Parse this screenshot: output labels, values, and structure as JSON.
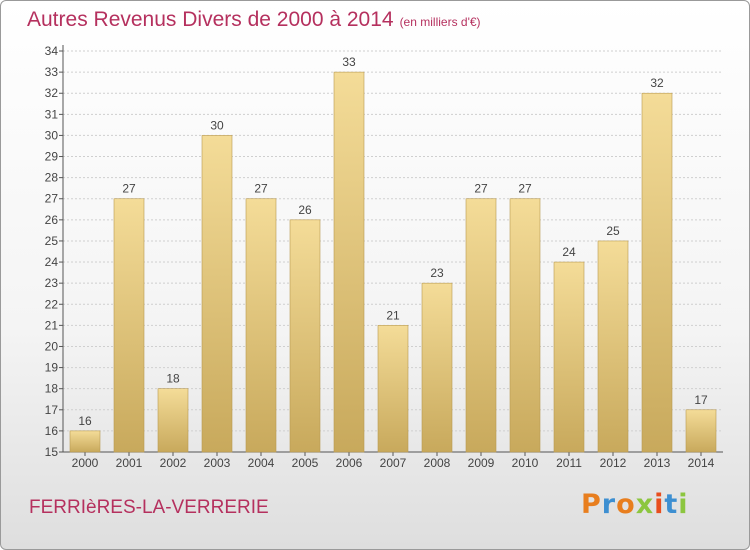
{
  "title": {
    "main": "Autres Revenus Divers de 2000 à 2014",
    "unit": "(en milliers d'€)"
  },
  "city": "FERRIèRES-LA-VERRERIE",
  "logo": {
    "letters": [
      "P",
      "r",
      "o",
      "x",
      "i",
      "t",
      "i"
    ],
    "colors": [
      "#e87e1e",
      "#3d8fd1",
      "#e87e1e",
      "#8cc63f",
      "#e84e1e",
      "#3d8fd1",
      "#8cc63f"
    ]
  },
  "chart_data": {
    "type": "bar",
    "categories": [
      "2000",
      "2001",
      "2002",
      "2003",
      "2004",
      "2005",
      "2006",
      "2007",
      "2008",
      "2009",
      "2010",
      "2011",
      "2012",
      "2013",
      "2014"
    ],
    "values": [
      16,
      27,
      18,
      30,
      27,
      26,
      33,
      21,
      23,
      27,
      27,
      24,
      25,
      32,
      17
    ],
    "title": "Autres Revenus Divers de 2000 à 2014",
    "xlabel": "",
    "ylabel": "",
    "ylim": [
      15,
      34
    ],
    "yticks": [
      15,
      16,
      17,
      18,
      19,
      20,
      21,
      22,
      23,
      24,
      25,
      26,
      27,
      28,
      29,
      30,
      31,
      32,
      33,
      34
    ],
    "grid": true,
    "data_labels": true,
    "bar_color": "#e8cd85"
  }
}
